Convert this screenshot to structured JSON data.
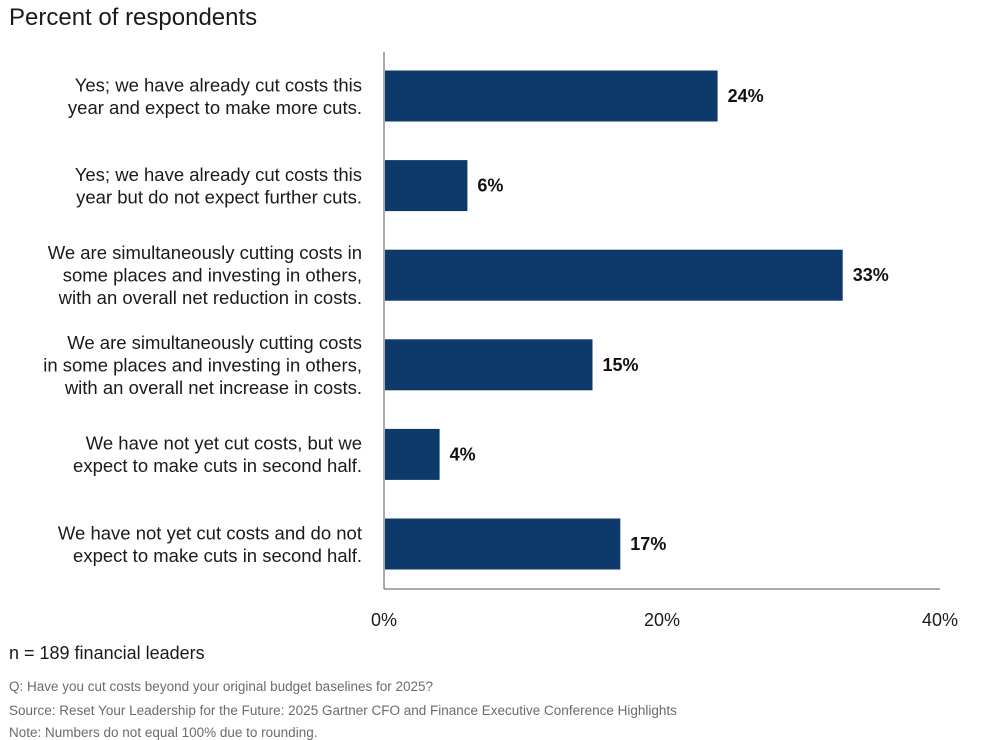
{
  "chart_data": {
    "type": "bar",
    "orientation": "horizontal",
    "title": "Percent of respondents",
    "categories": [
      [
        "Yes; we have already cut costs this",
        "year and expect to make more cuts."
      ],
      [
        "Yes; we have already cut costs this",
        "year but do not expect further cuts."
      ],
      [
        "We are simultaneously cutting costs in",
        "some places and investing in others,",
        "with an overall net reduction in costs."
      ],
      [
        "We are simultaneously cutting costs",
        "in some places and investing in others,",
        "with an overall net increase in costs."
      ],
      [
        "We have not yet cut costs, but we",
        "expect to make cuts in second half."
      ],
      [
        "We have not yet cut costs and do not",
        "expect to make cuts in second half."
      ]
    ],
    "values": [
      24,
      6,
      33,
      15,
      4,
      17
    ],
    "value_labels": [
      "24%",
      "6%",
      "33%",
      "15%",
      "4%",
      "17%"
    ],
    "xlim": [
      0,
      40
    ],
    "x_ticks": [
      0,
      20,
      40
    ],
    "x_tick_labels": [
      "0%",
      "20%",
      "40%"
    ],
    "bar_color": "#0d3a6b",
    "grid": false,
    "legend": "none"
  },
  "notes": {
    "sample": "n = 189 financial leaders",
    "question": "Q: Have you cut costs beyond your original budget baselines for 2025?",
    "source": "Source: Reset Your Leadership for the Future: 2025 Gartner CFO and Finance Executive Conference Highlights",
    "rounding": "Note: Numbers do not equal 100% due to rounding."
  }
}
